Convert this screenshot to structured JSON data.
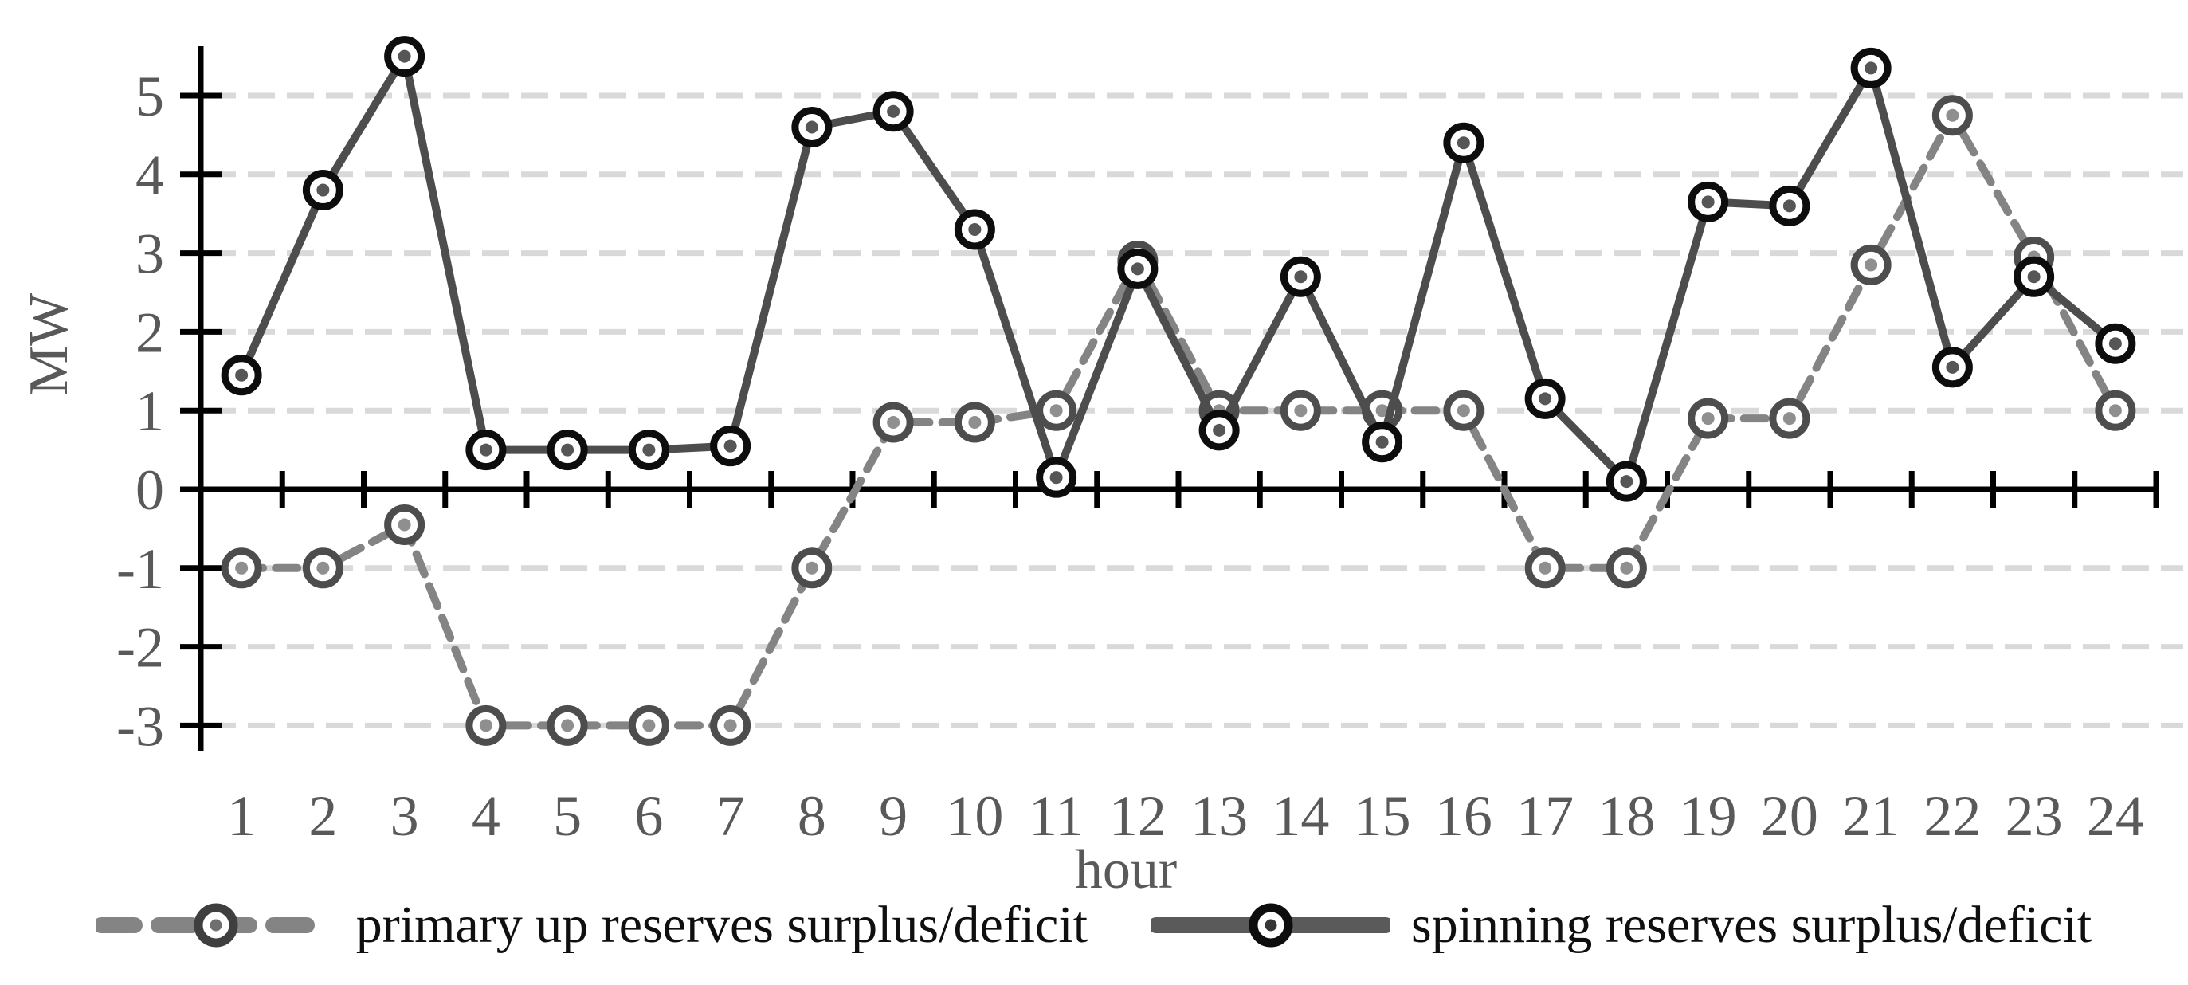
{
  "figure": {
    "background": "#ffffff"
  },
  "chart_data": {
    "type": "line",
    "title": "",
    "xlabel": "hour",
    "ylabel": "MW",
    "categories": [
      "1",
      "2",
      "3",
      "4",
      "5",
      "6",
      "7",
      "8",
      "9",
      "10",
      "11",
      "12",
      "13",
      "14",
      "15",
      "16",
      "17",
      "18",
      "19",
      "20",
      "21",
      "22",
      "23",
      "24"
    ],
    "series": [
      {
        "name": "primary up reserves surplus/deficit",
        "style": "dashed",
        "line_color": "#848484",
        "marker_ring_color": "#4d4d4d",
        "marker_dot_color": "#8f8f8f",
        "values": [
          -1,
          -1,
          -0.45,
          -3,
          -3,
          -3,
          -3,
          -1,
          0.85,
          0.85,
          1.0,
          2.9,
          1.0,
          1.0,
          1.0,
          1.0,
          -1,
          -1,
          0.9,
          0.9,
          2.85,
          4.75,
          2.95,
          1.0
        ]
      },
      {
        "name": "spinning reserves surplus/deficit",
        "style": "solid",
        "line_color": "#4d4d4d",
        "marker_ring_color": "#0d0d0d",
        "marker_dot_color": "#565656",
        "values": [
          1.45,
          3.8,
          5.5,
          0.5,
          0.5,
          0.5,
          0.55,
          4.6,
          4.8,
          3.3,
          0.15,
          2.8,
          0.75,
          2.7,
          0.6,
          4.4,
          1.15,
          0.1,
          3.65,
          3.6,
          5.35,
          1.55,
          2.7,
          1.85
        ]
      }
    ],
    "ylim": [
      -3.6,
      5.8
    ],
    "yticks": [
      "5",
      "4",
      "3",
      "2",
      "1",
      "0",
      "-1",
      "-2",
      "-3"
    ],
    "ytick_values": [
      5,
      4,
      3,
      2,
      1,
      0,
      -1,
      -2,
      -3
    ],
    "gridlines_at": [
      5,
      4,
      3,
      2,
      1,
      -1,
      -2,
      -3
    ],
    "grid_on": true,
    "grid_color": "#d9d9d9",
    "axis_color": "#000000",
    "text_color": "#595959",
    "legend_position": "bottom"
  }
}
